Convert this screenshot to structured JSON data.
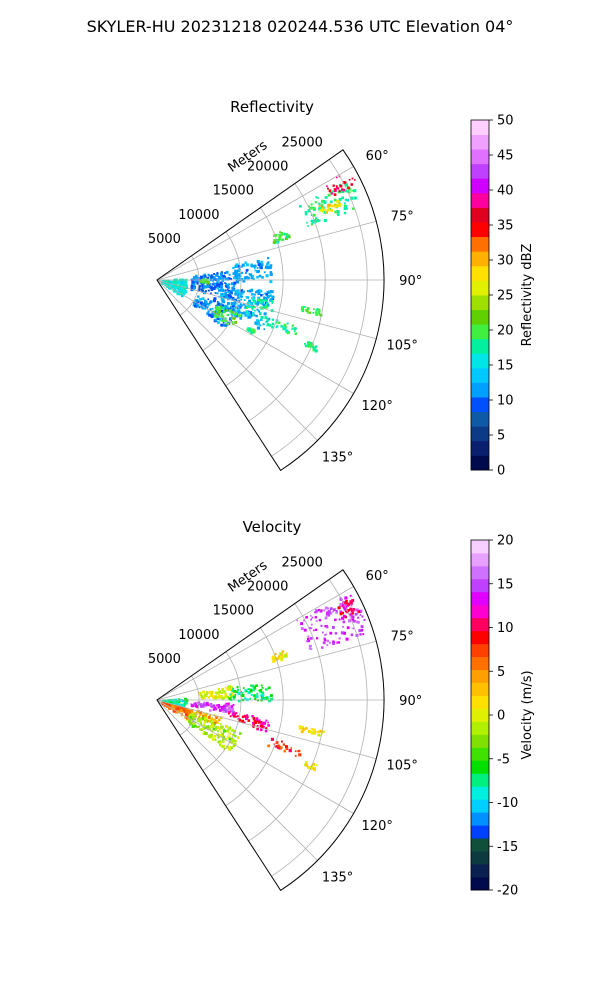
{
  "header": {
    "title": "SKYLER-HU  20231218  020244.536 UTC Elevation 04°"
  },
  "chart_data": [
    {
      "type": "heatmap",
      "projection": "polar-sector",
      "title": "Reflectivity",
      "radial_label": "Meters",
      "radial_ticks": [
        "5000",
        "10000",
        "15000",
        "20000",
        "25000"
      ],
      "radial_tick_values": [
        5000,
        10000,
        15000,
        20000,
        25000
      ],
      "r_max": 27000,
      "angle_ticks": [
        "60°",
        "75°",
        "90°",
        "105°",
        "120°",
        "135°"
      ],
      "angle_tick_values": [
        60,
        75,
        90,
        105,
        120,
        135
      ],
      "angle_range": [
        55,
        147
      ],
      "grid": true,
      "colorbar": {
        "label": "Reflectivity dBZ",
        "range": [
          0,
          50
        ],
        "ticks": [
          "0",
          "5",
          "10",
          "15",
          "20",
          "25",
          "30",
          "35",
          "40",
          "45",
          "50"
        ],
        "tick_values": [
          0,
          5,
          10,
          15,
          20,
          25,
          30,
          35,
          40,
          45,
          50
        ],
        "colors": [
          "#000a4d",
          "#0a1f6e",
          "#0c3a86",
          "#0f5aa6",
          "#0050ff",
          "#00a0ff",
          "#00c8ff",
          "#00e6e6",
          "#00f0a0",
          "#40f040",
          "#60d000",
          "#a0e000",
          "#e0f000",
          "#ffe000",
          "#ffb000",
          "#ff7000",
          "#ff0000",
          "#e00020",
          "#ff00a0",
          "#d000ff",
          "#c040ff",
          "#e070ff",
          "#f0a0ff",
          "#ffd0ff"
        ]
      },
      "echo_regions": [
        {
          "angle": [
            62,
            70
          ],
          "range": [
            19000,
            26000
          ],
          "value": 18
        },
        {
          "angle": [
            60,
            64
          ],
          "range": [
            23000,
            26500
          ],
          "value": 36
        },
        {
          "angle": [
            65,
            68
          ],
          "range": [
            21000,
            23500
          ],
          "value": 28
        },
        {
          "angle": [
            68,
            72
          ],
          "range": [
            14500,
            16500
          ],
          "value": 20
        },
        {
          "angle": [
            82,
            104
          ],
          "range": [
            4000,
            9500
          ],
          "value": 10
        },
        {
          "angle": [
            78,
            90
          ],
          "range": [
            9000,
            13500
          ],
          "value": 12
        },
        {
          "angle": [
            95,
            115
          ],
          "range": [
            7000,
            14000
          ],
          "value": 12
        },
        {
          "angle": [
            100,
            110
          ],
          "range": [
            11000,
            14000
          ],
          "value": 18
        },
        {
          "angle": [
            110,
            125
          ],
          "range": [
            5000,
            10000
          ],
          "value": 11
        },
        {
          "angle": [
            112,
            122
          ],
          "range": [
            7500,
            10500
          ],
          "value": 20
        },
        {
          "angle": [
            85,
            122
          ],
          "range": [
            500,
            3500
          ],
          "value": 16
        },
        {
          "angle": [
            88,
            92
          ],
          "range": [
            5000,
            6000
          ],
          "value": 20
        },
        {
          "angle": [
            100,
            102
          ],
          "range": [
            17000,
            20000
          ],
          "value": 20
        },
        {
          "angle": [
            108,
            112
          ],
          "range": [
            14000,
            18000
          ],
          "value": 18
        },
        {
          "angle": [
            117,
            119
          ],
          "range": [
            12000,
            13000
          ],
          "value": 18
        },
        {
          "angle": [
            112,
            114
          ],
          "range": [
            19000,
            20500
          ],
          "value": 18
        }
      ]
    },
    {
      "type": "heatmap",
      "projection": "polar-sector",
      "title": "Velocity",
      "radial_label": "Meters",
      "radial_ticks": [
        "5000",
        "10000",
        "15000",
        "20000",
        "25000"
      ],
      "radial_tick_values": [
        5000,
        10000,
        15000,
        20000,
        25000
      ],
      "r_max": 27000,
      "angle_ticks": [
        "60°",
        "75°",
        "90°",
        "105°",
        "120°",
        "135°"
      ],
      "angle_tick_values": [
        60,
        75,
        90,
        105,
        120,
        135
      ],
      "angle_range": [
        55,
        147
      ],
      "grid": true,
      "colorbar": {
        "label": "Velocity (m/s)",
        "range": [
          -20,
          20
        ],
        "ticks": [
          "-20",
          "-15",
          "-10",
          "-5",
          "0",
          "5",
          "10",
          "15",
          "20"
        ],
        "tick_values": [
          -20,
          -15,
          -10,
          -5,
          0,
          5,
          10,
          15,
          20
        ],
        "colors": [
          "#000a4d",
          "#0a2050",
          "#0c3a40",
          "#10503a",
          "#0040ff",
          "#0090ff",
          "#00d0ff",
          "#00f0e0",
          "#00f080",
          "#00e000",
          "#40e000",
          "#80e000",
          "#b0f000",
          "#e0f000",
          "#ffe000",
          "#ffc000",
          "#ffa000",
          "#ff7000",
          "#ff4000",
          "#ff0000",
          "#ff0060",
          "#ff00d0",
          "#e000ff",
          "#c040ff",
          "#d070ff",
          "#e8a0ff",
          "#f8d0ff"
        ]
      },
      "echo_regions": [
        {
          "angle": [
            60,
            72
          ],
          "range": [
            19000,
            26500
          ],
          "value": 15
        },
        {
          "angle": [
            62,
            66
          ],
          "range": [
            24000,
            26500
          ],
          "value": 10
        },
        {
          "angle": [
            68,
            72
          ],
          "range": [
            14500,
            16500
          ],
          "value": 1
        },
        {
          "angle": [
            78,
            88
          ],
          "range": [
            5000,
            9000
          ],
          "value": 0
        },
        {
          "angle": [
            80,
            90
          ],
          "range": [
            8500,
            13500
          ],
          "value": -7
        },
        {
          "angle": [
            85,
            105
          ],
          "range": [
            500,
            3500
          ],
          "value": -8
        },
        {
          "angle": [
            92,
            100
          ],
          "range": [
            4000,
            9500
          ],
          "value": 14
        },
        {
          "angle": [
            99,
            104
          ],
          "range": [
            8500,
            12000
          ],
          "value": 10
        },
        {
          "angle": [
            100,
            106
          ],
          "range": [
            11500,
            13500
          ],
          "value": 11
        },
        {
          "angle": [
            104,
            112
          ],
          "range": [
            2000,
            8000
          ],
          "value": 4
        },
        {
          "angle": [
            110,
            126
          ],
          "range": [
            4000,
            10500
          ],
          "value": -2
        },
        {
          "angle": [
            106,
            122
          ],
          "range": [
            500,
            4000
          ],
          "value": 6
        },
        {
          "angle": [
            100,
            102
          ],
          "range": [
            17000,
            20000
          ],
          "value": 1
        },
        {
          "angle": [
            108,
            112
          ],
          "range": [
            14000,
            18000
          ],
          "value": 8
        },
        {
          "angle": [
            112,
            114
          ],
          "range": [
            19000,
            20500
          ],
          "value": 1
        }
      ]
    }
  ]
}
